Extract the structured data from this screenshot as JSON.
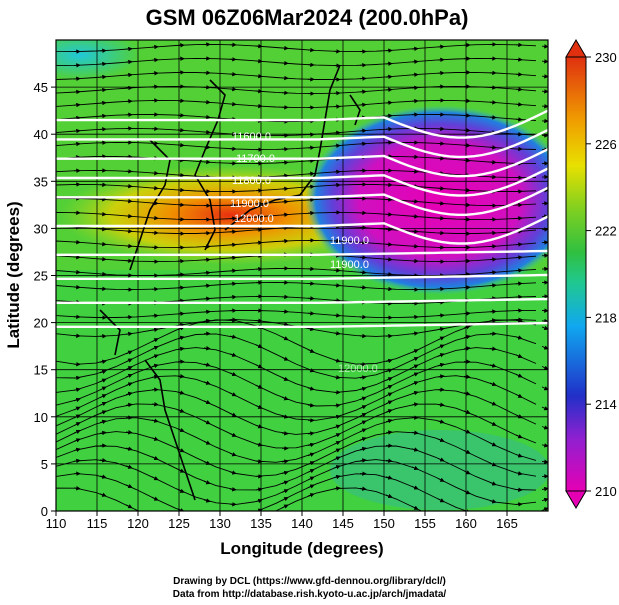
{
  "chart_data": {
    "type": "heatmap",
    "title": "GSM 06Z06Mar2024 (200.0hPa)",
    "xlabel": "Longitude (degrees)",
    "ylabel": "Latitude  (degrees)",
    "xlim": [
      110,
      170
    ],
    "ylim": [
      0,
      50
    ],
    "xticks": [
      110,
      115,
      120,
      125,
      130,
      135,
      140,
      145,
      150,
      155,
      160,
      165
    ],
    "yticks": [
      0,
      5,
      10,
      15,
      20,
      25,
      30,
      35,
      40,
      45
    ],
    "colorbar": {
      "range": [
        210,
        230
      ],
      "ticks": [
        210,
        214,
        218,
        222,
        226,
        230
      ],
      "colors": [
        "#e600b4",
        "#2030c8",
        "#10a8f0",
        "#20c060",
        "#60d020",
        "#e8e000",
        "#f0a000",
        "#e03010"
      ]
    },
    "contour_labels": [
      "11600.0",
      "11700.0",
      "11800.0",
      "11900.0",
      "12000.0",
      "11900.0",
      "11900.0",
      "12000.0"
    ],
    "streamlines": true,
    "height_contours_color": "#ffffff",
    "grid": true
  },
  "credits": {
    "line1": "Drawing by DCL (https://www.gfd-dennou.org/library/dcl/)",
    "line2": "Data from http://database.rish.kyoto-u.ac.jp/arch/jmadata/"
  }
}
